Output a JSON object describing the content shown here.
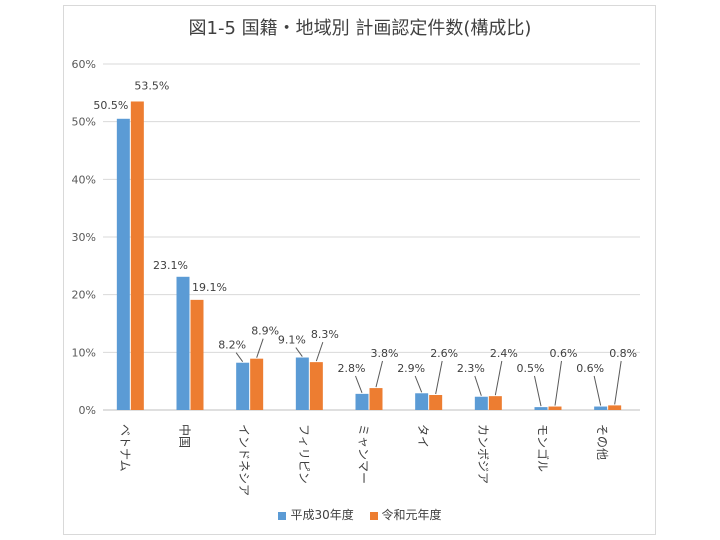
{
  "chart_data": {
    "type": "bar",
    "title": "図1-5 国籍・地域別 計画認定件数(構成比)",
    "categories": [
      "ベトナム",
      "中国",
      "インドネシア",
      "フィリピン",
      "ミャンマー",
      "タイ",
      "カンボジア",
      "モンゴル",
      "その他"
    ],
    "series": [
      {
        "name": "平成30年度",
        "color": "#5b9bd5",
        "values": [
          50.5,
          23.1,
          8.2,
          9.1,
          2.8,
          2.9,
          2.3,
          0.5,
          0.6
        ],
        "labels": [
          "50.5%",
          "23.1%",
          "8.2%",
          "9.1%",
          "2.8%",
          "2.9%",
          "2.3%",
          "0.5%",
          "0.6%"
        ]
      },
      {
        "name": "令和元年度",
        "color": "#ed7d31",
        "values": [
          53.5,
          19.1,
          8.9,
          8.3,
          3.8,
          2.6,
          2.4,
          0.6,
          0.8
        ],
        "labels": [
          "53.5%",
          "19.1%",
          "8.9%",
          "8.3%",
          "3.8%",
          "2.6%",
          "2.4%",
          "0.6%",
          "0.8%"
        ]
      }
    ],
    "ylim": [
      0,
      60
    ],
    "yticks": [
      "0%",
      "10%",
      "20%",
      "30%",
      "40%",
      "50%",
      "60%"
    ],
    "grid": true,
    "legend_position": "bottom"
  }
}
